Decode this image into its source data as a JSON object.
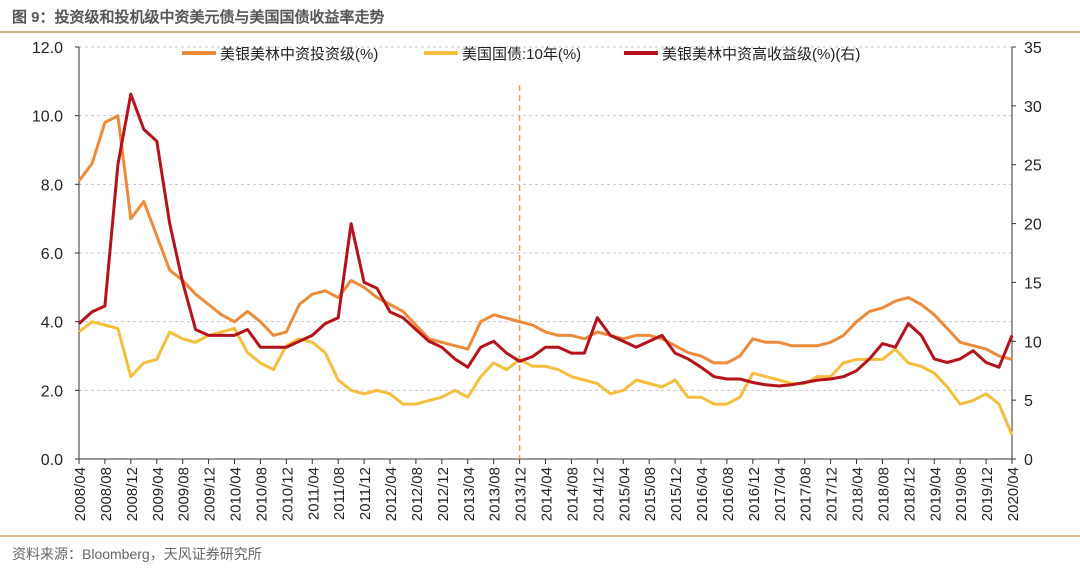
{
  "title": "图 9：投资级和投机级中资美元债与美国国债收益率走势",
  "source": "资料来源：Bloomberg，天风证券研究所",
  "chart_data": {
    "type": "line",
    "title": "图 9：投资级和投机级中资美元债与美国国债收益率走势",
    "xlabel": "",
    "ylabel": "",
    "ylim": [
      0,
      12
    ],
    "y2lim": [
      0,
      35
    ],
    "yticks": [
      "0.0",
      "2.0",
      "4.0",
      "6.0",
      "8.0",
      "10.0",
      "12.0"
    ],
    "y2ticks": [
      "0",
      "5",
      "10",
      "15",
      "20",
      "25",
      "30",
      "35"
    ],
    "grid": true,
    "legend_position": "top",
    "annotation": {
      "type": "vertical-dashed-line",
      "x": "2013/12",
      "color": "#f0a04b"
    },
    "xtick_labels": [
      "2008/04",
      "2008/08",
      "2008/12",
      "2009/04",
      "2009/08",
      "2009/12",
      "2010/04",
      "2010/08",
      "2010/12",
      "2011/04",
      "2011/08",
      "2011/12",
      "2012/04",
      "2012/08",
      "2012/12",
      "2013/04",
      "2013/08",
      "2013/12",
      "2014/04",
      "2014/08",
      "2014/12",
      "2015/04",
      "2015/08",
      "2015/12",
      "2016/04",
      "2016/08",
      "2016/12",
      "2017/04",
      "2017/08",
      "2017/12",
      "2018/04",
      "2018/08",
      "2018/12",
      "2019/04",
      "2019/08",
      "2019/12",
      "2020/04"
    ],
    "x_step_months": 2,
    "series": [
      {
        "name": "美银美林中资投资级(%)",
        "axis": "left",
        "color": "#ed8b3a",
        "values": [
          8.1,
          8.6,
          9.8,
          10.0,
          7.0,
          7.5,
          6.5,
          5.5,
          5.2,
          4.8,
          4.5,
          4.2,
          4.0,
          4.3,
          4.0,
          3.6,
          3.7,
          4.5,
          4.8,
          4.9,
          4.7,
          5.2,
          5.0,
          4.7,
          4.5,
          4.3,
          3.9,
          3.5,
          3.4,
          3.3,
          3.2,
          4.0,
          4.2,
          4.1,
          4.0,
          3.9,
          3.7,
          3.6,
          3.6,
          3.5,
          3.7,
          3.6,
          3.5,
          3.6,
          3.6,
          3.5,
          3.3,
          3.1,
          3.0,
          2.8,
          2.8,
          3.0,
          3.5,
          3.4,
          3.4,
          3.3,
          3.3,
          3.3,
          3.4,
          3.6,
          4.0,
          4.3,
          4.4,
          4.6,
          4.7,
          4.5,
          4.2,
          3.8,
          3.4,
          3.3,
          3.2,
          3.0,
          2.9
        ]
      },
      {
        "name": "美国国债:10年(%)",
        "axis": "left",
        "color": "#f5be3c",
        "values": [
          3.7,
          4.0,
          3.9,
          3.8,
          2.4,
          2.8,
          2.9,
          3.7,
          3.5,
          3.4,
          3.6,
          3.7,
          3.8,
          3.1,
          2.8,
          2.6,
          3.3,
          3.5,
          3.4,
          3.1,
          2.3,
          2.0,
          1.9,
          2.0,
          1.9,
          1.6,
          1.6,
          1.7,
          1.8,
          2.0,
          1.8,
          2.4,
          2.8,
          2.6,
          2.9,
          2.7,
          2.7,
          2.6,
          2.4,
          2.3,
          2.2,
          1.9,
          2.0,
          2.3,
          2.2,
          2.1,
          2.3,
          1.8,
          1.8,
          1.6,
          1.6,
          1.8,
          2.5,
          2.4,
          2.3,
          2.2,
          2.2,
          2.4,
          2.4,
          2.8,
          2.9,
          2.9,
          2.9,
          3.2,
          2.8,
          2.7,
          2.5,
          2.1,
          1.6,
          1.7,
          1.9,
          1.6,
          0.7
        ]
      },
      {
        "name": "美银美林中资高收益级(%)(右)",
        "axis": "right",
        "color": "#b5121b",
        "values": [
          11.5,
          12.5,
          13,
          25,
          31,
          28,
          27,
          20,
          15,
          11,
          10.5,
          10.5,
          10.5,
          11,
          9.5,
          9.5,
          9.5,
          10,
          10.5,
          11.5,
          12,
          20,
          15,
          14.5,
          12.5,
          12,
          11,
          10,
          9.5,
          8.5,
          7.8,
          9.5,
          10,
          9,
          8.3,
          8.7,
          9.5,
          9.5,
          9,
          9,
          12,
          10.5,
          10,
          9.5,
          10,
          10.5,
          9,
          8.5,
          7.8,
          7,
          6.8,
          6.8,
          6.5,
          6.3,
          6.2,
          6.3,
          6.5,
          6.7,
          6.8,
          7,
          7.5,
          8.5,
          9.8,
          9.5,
          11.5,
          10.5,
          8.5,
          8.2,
          8.5,
          9.2,
          8.2,
          7.8,
          10.5
        ]
      }
    ]
  }
}
